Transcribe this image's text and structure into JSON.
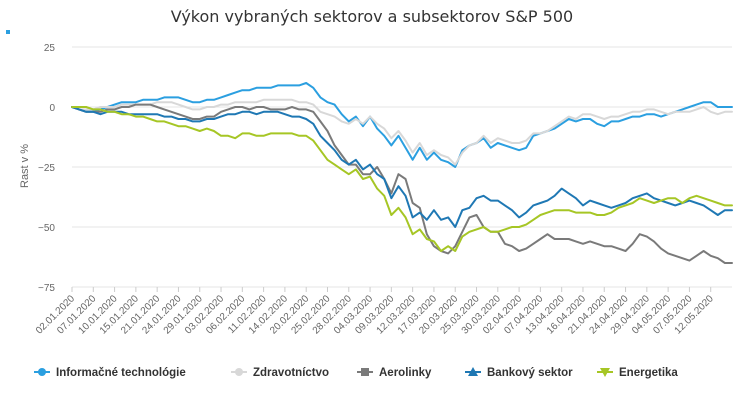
{
  "chart_data": {
    "type": "line",
    "title": "Výkon vybraných sektorov a subsektorov S&P 500",
    "ylabel": "Rast v %",
    "xlabel": "",
    "ylim": [
      -75,
      25
    ],
    "yticks": [
      25,
      0,
      -25,
      -50,
      -75
    ],
    "grid": true,
    "legend_position": "bottom",
    "x": [
      "02.01.2020",
      "03.01.2020",
      "06.01.2020",
      "07.01.2020",
      "08.01.2020",
      "09.01.2020",
      "10.01.2020",
      "13.01.2020",
      "14.01.2020",
      "15.01.2020",
      "16.01.2020",
      "17.01.2020",
      "21.01.2020",
      "22.01.2020",
      "23.01.2020",
      "24.01.2020",
      "27.01.2020",
      "28.01.2020",
      "29.01.2020",
      "30.01.2020",
      "31.01.2020",
      "03.02.2020",
      "04.02.2020",
      "05.02.2020",
      "06.02.2020",
      "07.02.2020",
      "10.02.2020",
      "11.02.2020",
      "12.02.2020",
      "13.02.2020",
      "14.02.2020",
      "18.02.2020",
      "19.02.2020",
      "20.02.2020",
      "21.02.2020",
      "24.02.2020",
      "25.02.2020",
      "26.02.2020",
      "27.02.2020",
      "28.02.2020",
      "02.03.2020",
      "03.03.2020",
      "04.03.2020",
      "05.03.2020",
      "06.03.2020",
      "09.03.2020",
      "10.03.2020",
      "11.03.2020",
      "12.03.2020",
      "13.03.2020",
      "16.03.2020",
      "17.03.2020",
      "18.03.2020",
      "19.03.2020",
      "20.03.2020",
      "23.03.2020",
      "24.03.2020",
      "25.03.2020",
      "26.03.2020",
      "27.03.2020",
      "30.03.2020",
      "31.03.2020",
      "01.04.2020",
      "02.04.2020",
      "03.04.2020",
      "06.04.2020",
      "07.04.2020",
      "08.04.2020",
      "09.04.2020",
      "13.04.2020",
      "14.04.2020",
      "15.04.2020",
      "16.04.2020",
      "17.04.2020",
      "20.04.2020",
      "21.04.2020",
      "22.04.2020",
      "23.04.2020",
      "24.04.2020",
      "27.04.2020",
      "28.04.2020",
      "29.04.2020",
      "30.04.2020",
      "01.05.2020",
      "04.05.2020",
      "05.05.2020",
      "06.05.2020",
      "07.05.2020",
      "08.05.2020",
      "11.05.2020",
      "12.05.2020",
      "13.05.2020",
      "14.05.2020",
      "15.05.2020"
    ],
    "xtick_labels": [
      "02.01.2020",
      "07.01.2020",
      "10.01.2020",
      "15.01.2020",
      "21.01.2020",
      "24.01.2020",
      "29.01.2020",
      "03.02.2020",
      "06.02.2020",
      "11.02.2020",
      "14.02.2020",
      "20.02.2020",
      "25.02.2020",
      "28.02.2020",
      "04.03.2020",
      "09.03.2020",
      "12.03.2020",
      "17.03.2020",
      "20.03.2020",
      "25.03.2020",
      "30.03.2020",
      "02.04.2020",
      "07.04.2020",
      "13.04.2020",
      "16.04.2020",
      "21.04.2020",
      "24.04.2020",
      "29.04.2020",
      "04.05.2020",
      "07.05.2020",
      "12.05.2020"
    ],
    "series": [
      {
        "name": "Informačné technológie",
        "color": "#2b9fe0",
        "marker": "circle",
        "values": [
          0,
          -1,
          -2,
          -2,
          -1,
          0,
          1,
          2,
          2,
          2,
          3,
          3,
          3,
          4,
          4,
          4,
          3,
          2,
          2,
          3,
          3,
          4,
          5,
          6,
          7,
          7,
          8,
          8,
          8,
          9,
          9,
          9,
          9,
          10,
          8,
          4,
          2,
          1,
          -3,
          -6,
          -4,
          -8,
          -4,
          -9,
          -12,
          -16,
          -12,
          -17,
          -22,
          -17,
          -22,
          -19,
          -22,
          -23,
          -25,
          -18,
          -16,
          -15,
          -13,
          -17,
          -15,
          -16,
          -17,
          -18,
          -17,
          -12,
          -11,
          -10,
          -9,
          -7,
          -5,
          -6,
          -5,
          -5,
          -7,
          -8,
          -6,
          -6,
          -5,
          -4,
          -4,
          -3,
          -3,
          -4,
          -3,
          -2,
          -1,
          0,
          1,
          2,
          2,
          0,
          0,
          0
        ]
      },
      {
        "name": "Zdravotníctvo",
        "color": "#d8d8d8",
        "marker": "circle",
        "values": [
          0,
          -1,
          -1,
          -1,
          0,
          0,
          0,
          1,
          1,
          1,
          1,
          1,
          2,
          2,
          2,
          1,
          0,
          -1,
          -1,
          0,
          0,
          1,
          1,
          2,
          2,
          2,
          2,
          3,
          3,
          3,
          3,
          3,
          2,
          2,
          1,
          -2,
          -3,
          -4,
          -6,
          -7,
          -5,
          -7,
          -4,
          -7,
          -9,
          -13,
          -10,
          -14,
          -19,
          -15,
          -20,
          -18,
          -20,
          -21,
          -24,
          -19,
          -16,
          -15,
          -12,
          -15,
          -13,
          -14,
          -15,
          -15,
          -14,
          -11,
          -11,
          -10,
          -8,
          -6,
          -4,
          -5,
          -3,
          -3,
          -4,
          -5,
          -4,
          -4,
          -3,
          -2,
          -2,
          -1,
          -1,
          -2,
          -3,
          -2,
          -2,
          -2,
          -1,
          0,
          -2,
          -3,
          -2,
          -2
        ]
      },
      {
        "name": "Aerolinky",
        "color": "#7a7a7a",
        "marker": "square",
        "values": [
          0,
          -1,
          -2,
          -2,
          -2,
          -1,
          -1,
          0,
          0,
          1,
          1,
          1,
          0,
          -1,
          -2,
          -3,
          -4,
          -5,
          -5,
          -4,
          -4,
          -2,
          -1,
          0,
          0,
          -1,
          0,
          0,
          -1,
          -1,
          -1,
          0,
          -1,
          -1,
          -2,
          -6,
          -10,
          -16,
          -20,
          -24,
          -24,
          -28,
          -28,
          -25,
          -30,
          -36,
          -28,
          -30,
          -40,
          -42,
          -53,
          -58,
          -60,
          -61,
          -58,
          -52,
          -46,
          -45,
          -50,
          -52,
          -52,
          -57,
          -58,
          -60,
          -59,
          -57,
          -55,
          -53,
          -55,
          -55,
          -55,
          -56,
          -57,
          -56,
          -57,
          -58,
          -58,
          -59,
          -60,
          -57,
          -53,
          -54,
          -56,
          -59,
          -61,
          -62,
          -63,
          -64,
          -62,
          -60,
          -62,
          -63,
          -65,
          -65
        ]
      },
      {
        "name": "Bankový sektor",
        "color": "#1f78b4",
        "marker": "triangle",
        "values": [
          0,
          -1,
          -2,
          -2,
          -3,
          -2,
          -2,
          -2,
          -3,
          -3,
          -3,
          -3,
          -3,
          -4,
          -4,
          -5,
          -5,
          -6,
          -6,
          -5,
          -5,
          -4,
          -3,
          -3,
          -2,
          -2,
          -3,
          -2,
          -2,
          -2,
          -3,
          -4,
          -4,
          -5,
          -7,
          -12,
          -15,
          -18,
          -22,
          -24,
          -22,
          -26,
          -24,
          -28,
          -30,
          -38,
          -33,
          -37,
          -46,
          -44,
          -47,
          -43,
          -47,
          -46,
          -50,
          -43,
          -42,
          -38,
          -37,
          -39,
          -39,
          -41,
          -43,
          -46,
          -44,
          -41,
          -40,
          -39,
          -37,
          -34,
          -36,
          -38,
          -41,
          -39,
          -40,
          -41,
          -42,
          -41,
          -40,
          -38,
          -37,
          -36,
          -38,
          -39,
          -40,
          -41,
          -40,
          -39,
          -40,
          -41,
          -43,
          -45,
          -43,
          -43
        ]
      },
      {
        "name": "Energetika",
        "color": "#a6c625",
        "marker": "triangle-down",
        "values": [
          0,
          0,
          0,
          -1,
          -1,
          -2,
          -2,
          -3,
          -3,
          -4,
          -4,
          -5,
          -6,
          -6,
          -7,
          -8,
          -8,
          -9,
          -10,
          -9,
          -10,
          -12,
          -12,
          -13,
          -11,
          -11,
          -12,
          -12,
          -11,
          -11,
          -11,
          -11,
          -12,
          -12,
          -14,
          -18,
          -22,
          -24,
          -26,
          -28,
          -26,
          -30,
          -29,
          -34,
          -37,
          -45,
          -42,
          -46,
          -53,
          -51,
          -55,
          -56,
          -60,
          -58,
          -60,
          -54,
          -52,
          -51,
          -50,
          -52,
          -52,
          -51,
          -50,
          -50,
          -49,
          -47,
          -45,
          -44,
          -43,
          -43,
          -43,
          -44,
          -44,
          -44,
          -45,
          -45,
          -44,
          -42,
          -41,
          -40,
          -38,
          -39,
          -40,
          -39,
          -38,
          -38,
          -40,
          -38,
          -37,
          -38,
          -39,
          -40,
          -41,
          -41
        ]
      }
    ]
  }
}
